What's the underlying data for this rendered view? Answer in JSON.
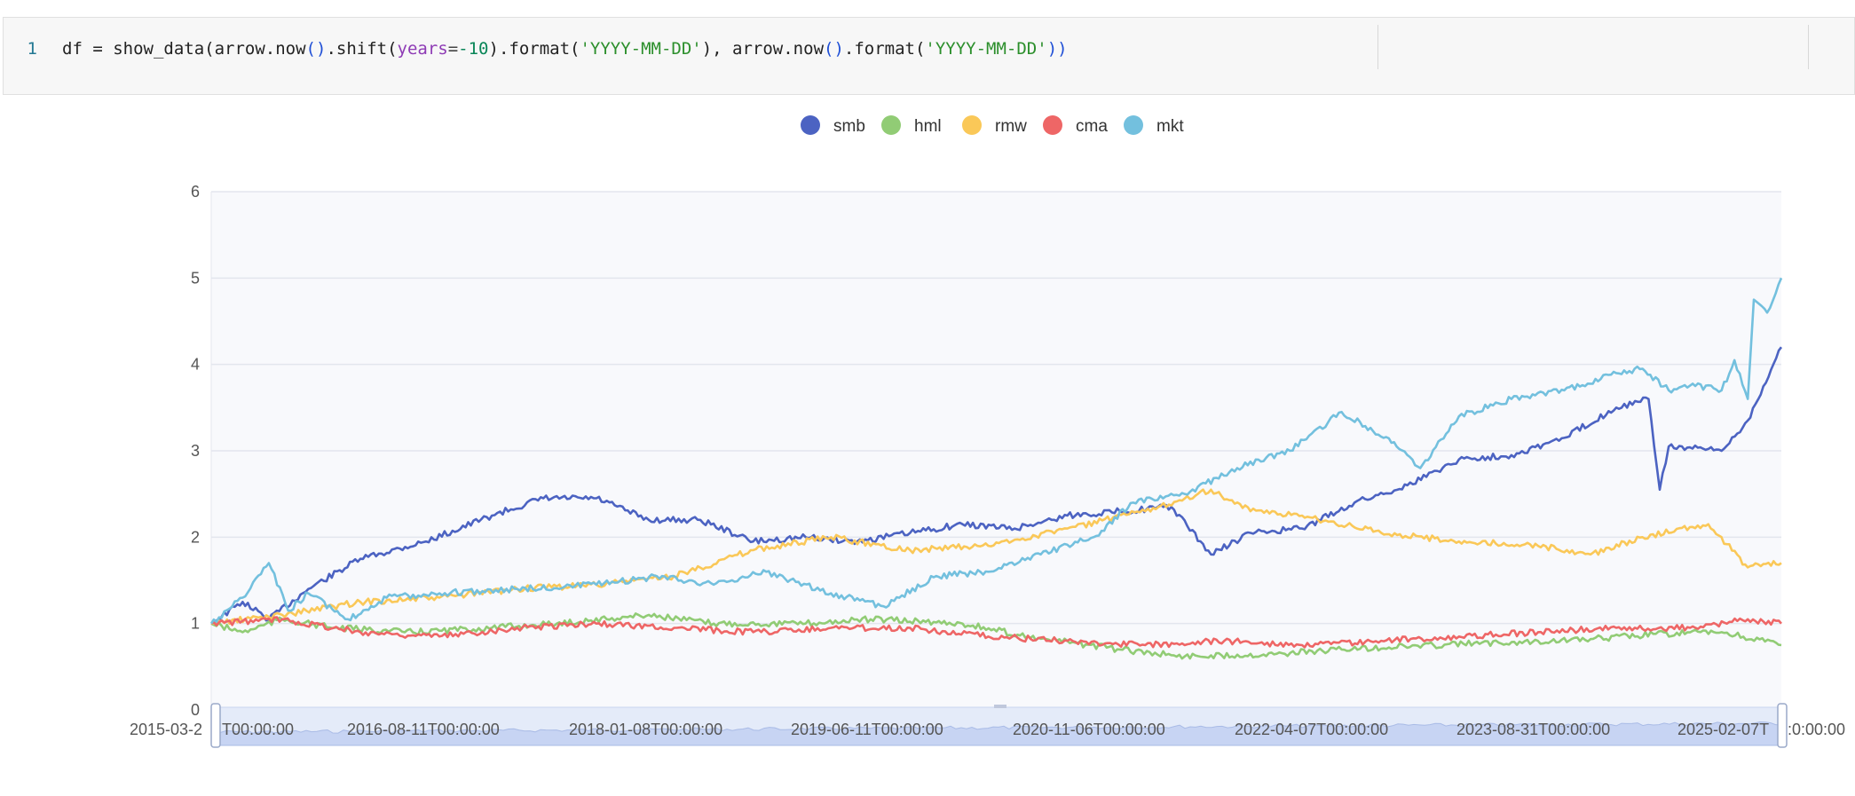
{
  "code_cell": {
    "line_number": "1",
    "tokens": [
      {
        "t": "df = show_data(",
        "c": "tok-plain"
      },
      {
        "t": "arrow.now",
        "c": "tok-plain"
      },
      {
        "t": "()",
        "c": "tok-paren"
      },
      {
        "t": ".shift(",
        "c": "tok-plain"
      },
      {
        "t": "years",
        "c": "tok-kw"
      },
      {
        "t": "=",
        "c": "tok-op"
      },
      {
        "t": "-10",
        "c": "tok-num"
      },
      {
        "t": ").format(",
        "c": "tok-plain"
      },
      {
        "t": "'YYYY-MM-DD'",
        "c": "tok-str"
      },
      {
        "t": "), arrow.now",
        "c": "tok-plain"
      },
      {
        "t": "()",
        "c": "tok-paren"
      },
      {
        "t": ".format(",
        "c": "tok-plain"
      },
      {
        "t": "'YYYY-MM-DD'",
        "c": "tok-str"
      },
      {
        "t": "))",
        "c": "tok-paren"
      }
    ]
  },
  "chart_data": {
    "type": "line",
    "title": "",
    "xlabel": "",
    "ylabel": "",
    "ylim": [
      0,
      6
    ],
    "yticks": [
      0,
      1,
      2,
      3,
      4,
      5,
      6
    ],
    "xtick_labels": [
      "2015-03-2",
      "2016-08-11T00:00:00",
      "2018-01-08T00:00:00",
      "2019-06-11T00:00:00",
      "2020-11-06T00:00:00",
      "2022-04-07T00:00:00",
      "2023-08-31T00:00:00",
      "2025-02-07T"
    ],
    "xtick_partial_labels": [
      "T00:00:00",
      ":0:00:00"
    ],
    "x_range": [
      "2015-03-20",
      "2025-03-20"
    ],
    "grid": true,
    "legend_position": "top-center",
    "series": [
      {
        "name": "smb",
        "color": "#4c63c2",
        "points": [
          [
            "2015-03-20",
            1.0
          ],
          [
            "2015-06-01",
            1.25
          ],
          [
            "2015-08-01",
            1.05
          ],
          [
            "2015-11-01",
            1.4
          ],
          [
            "2016-03-01",
            1.75
          ],
          [
            "2016-08-01",
            1.95
          ],
          [
            "2017-01-01",
            2.25
          ],
          [
            "2017-05-01",
            2.45
          ],
          [
            "2017-09-01",
            2.45
          ],
          [
            "2018-01-01",
            2.2
          ],
          [
            "2018-05-01",
            2.2
          ],
          [
            "2018-09-01",
            1.95
          ],
          [
            "2019-01-01",
            2.0
          ],
          [
            "2019-05-01",
            1.95
          ],
          [
            "2019-09-01",
            2.05
          ],
          [
            "2020-01-01",
            2.15
          ],
          [
            "2020-05-01",
            2.1
          ],
          [
            "2020-09-01",
            2.25
          ],
          [
            "2021-01-01",
            2.3
          ],
          [
            "2021-05-01",
            2.35
          ],
          [
            "2021-08-01",
            1.8
          ],
          [
            "2021-11-01",
            2.05
          ],
          [
            "2022-03-01",
            2.1
          ],
          [
            "2022-07-01",
            2.4
          ],
          [
            "2022-11-01",
            2.6
          ],
          [
            "2023-03-01",
            2.9
          ],
          [
            "2023-07-01",
            2.95
          ],
          [
            "2023-11-01",
            3.15
          ],
          [
            "2024-03-01",
            3.5
          ],
          [
            "2024-05-15",
            3.6
          ],
          [
            "2024-06-10",
            2.55
          ],
          [
            "2024-07-01",
            3.05
          ],
          [
            "2024-11-01",
            3.0
          ],
          [
            "2025-01-01",
            3.35
          ],
          [
            "2025-03-20",
            4.2
          ]
        ]
      },
      {
        "name": "hml",
        "color": "#91cc75",
        "points": [
          [
            "2015-03-20",
            1.0
          ],
          [
            "2015-06-01",
            0.9
          ],
          [
            "2015-09-01",
            1.05
          ],
          [
            "2016-01-01",
            0.95
          ],
          [
            "2016-07-01",
            0.9
          ],
          [
            "2017-01-01",
            0.95
          ],
          [
            "2017-06-01",
            1.0
          ],
          [
            "2018-01-01",
            1.1
          ],
          [
            "2018-06-01",
            1.0
          ],
          [
            "2019-01-01",
            1.0
          ],
          [
            "2019-06-01",
            1.05
          ],
          [
            "2020-01-01",
            1.0
          ],
          [
            "2020-06-01",
            0.85
          ],
          [
            "2021-01-01",
            0.7
          ],
          [
            "2021-06-01",
            0.62
          ],
          [
            "2022-01-01",
            0.65
          ],
          [
            "2022-06-01",
            0.7
          ],
          [
            "2023-01-01",
            0.75
          ],
          [
            "2023-06-01",
            0.78
          ],
          [
            "2024-01-01",
            0.82
          ],
          [
            "2024-06-01",
            0.88
          ],
          [
            "2024-11-01",
            0.9
          ],
          [
            "2025-03-20",
            0.75
          ]
        ]
      },
      {
        "name": "rmw",
        "color": "#fac858",
        "points": [
          [
            "2015-03-20",
            1.0
          ],
          [
            "2015-09-01",
            1.1
          ],
          [
            "2016-03-01",
            1.25
          ],
          [
            "2016-09-01",
            1.3
          ],
          [
            "2017-03-01",
            1.4
          ],
          [
            "2017-09-01",
            1.45
          ],
          [
            "2018-03-01",
            1.55
          ],
          [
            "2018-09-01",
            1.85
          ],
          [
            "2019-03-01",
            2.0
          ],
          [
            "2019-09-01",
            1.85
          ],
          [
            "2020-03-01",
            1.9
          ],
          [
            "2020-09-01",
            2.1
          ],
          [
            "2021-03-01",
            2.3
          ],
          [
            "2021-08-01",
            2.55
          ],
          [
            "2021-11-01",
            2.3
          ],
          [
            "2022-03-01",
            2.25
          ],
          [
            "2022-09-01",
            2.05
          ],
          [
            "2023-03-01",
            1.95
          ],
          [
            "2023-09-01",
            1.9
          ],
          [
            "2024-01-01",
            1.8
          ],
          [
            "2024-05-01",
            2.0
          ],
          [
            "2024-10-01",
            2.15
          ],
          [
            "2025-01-01",
            1.65
          ],
          [
            "2025-03-20",
            1.7
          ]
        ]
      },
      {
        "name": "cma",
        "color": "#ee6666",
        "points": [
          [
            "2015-03-20",
            1.0
          ],
          [
            "2015-09-01",
            1.05
          ],
          [
            "2016-03-01",
            0.9
          ],
          [
            "2016-09-01",
            0.85
          ],
          [
            "2017-03-01",
            0.95
          ],
          [
            "2017-09-01",
            1.0
          ],
          [
            "2018-03-01",
            0.95
          ],
          [
            "2018-09-01",
            0.9
          ],
          [
            "2019-03-01",
            0.95
          ],
          [
            "2019-09-01",
            0.95
          ],
          [
            "2020-03-01",
            0.85
          ],
          [
            "2020-09-01",
            0.8
          ],
          [
            "2021-03-01",
            0.75
          ],
          [
            "2021-09-01",
            0.8
          ],
          [
            "2022-03-01",
            0.75
          ],
          [
            "2022-09-01",
            0.8
          ],
          [
            "2023-03-01",
            0.85
          ],
          [
            "2023-09-01",
            0.9
          ],
          [
            "2024-03-01",
            0.95
          ],
          [
            "2024-09-01",
            0.95
          ],
          [
            "2025-01-01",
            1.05
          ],
          [
            "2025-03-20",
            1.0
          ]
        ]
      },
      {
        "name": "mkt",
        "color": "#73c0de",
        "points": [
          [
            "2015-03-20",
            1.0
          ],
          [
            "2015-06-01",
            1.3
          ],
          [
            "2015-08-01",
            1.7
          ],
          [
            "2015-09-15",
            1.15
          ],
          [
            "2015-11-01",
            1.35
          ],
          [
            "2016-02-01",
            1.05
          ],
          [
            "2016-05-01",
            1.3
          ],
          [
            "2016-09-01",
            1.35
          ],
          [
            "2017-03-01",
            1.4
          ],
          [
            "2017-09-01",
            1.45
          ],
          [
            "2018-02-01",
            1.55
          ],
          [
            "2018-06-01",
            1.45
          ],
          [
            "2018-10-01",
            1.6
          ],
          [
            "2019-03-01",
            1.35
          ],
          [
            "2019-07-01",
            1.2
          ],
          [
            "2019-11-01",
            1.55
          ],
          [
            "2020-03-01",
            1.6
          ],
          [
            "2020-07-01",
            1.8
          ],
          [
            "2020-11-01",
            2.0
          ],
          [
            "2021-02-01",
            2.4
          ],
          [
            "2021-06-01",
            2.5
          ],
          [
            "2021-10-01",
            2.8
          ],
          [
            "2022-02-01",
            3.0
          ],
          [
            "2022-06-01",
            3.45
          ],
          [
            "2022-10-01",
            3.1
          ],
          [
            "2022-12-01",
            2.8
          ],
          [
            "2023-03-01",
            3.4
          ],
          [
            "2023-07-01",
            3.6
          ],
          [
            "2023-11-01",
            3.7
          ],
          [
            "2024-03-01",
            3.9
          ],
          [
            "2024-05-01",
            3.95
          ],
          [
            "2024-07-01",
            3.7
          ],
          [
            "2024-09-01",
            3.75
          ],
          [
            "2024-11-01",
            3.7
          ],
          [
            "2024-12-01",
            4.05
          ],
          [
            "2025-01-01",
            3.6
          ],
          [
            "2025-01-15",
            4.75
          ],
          [
            "2025-02-15",
            4.6
          ],
          [
            "2025-03-20",
            5.0
          ]
        ]
      }
    ]
  }
}
